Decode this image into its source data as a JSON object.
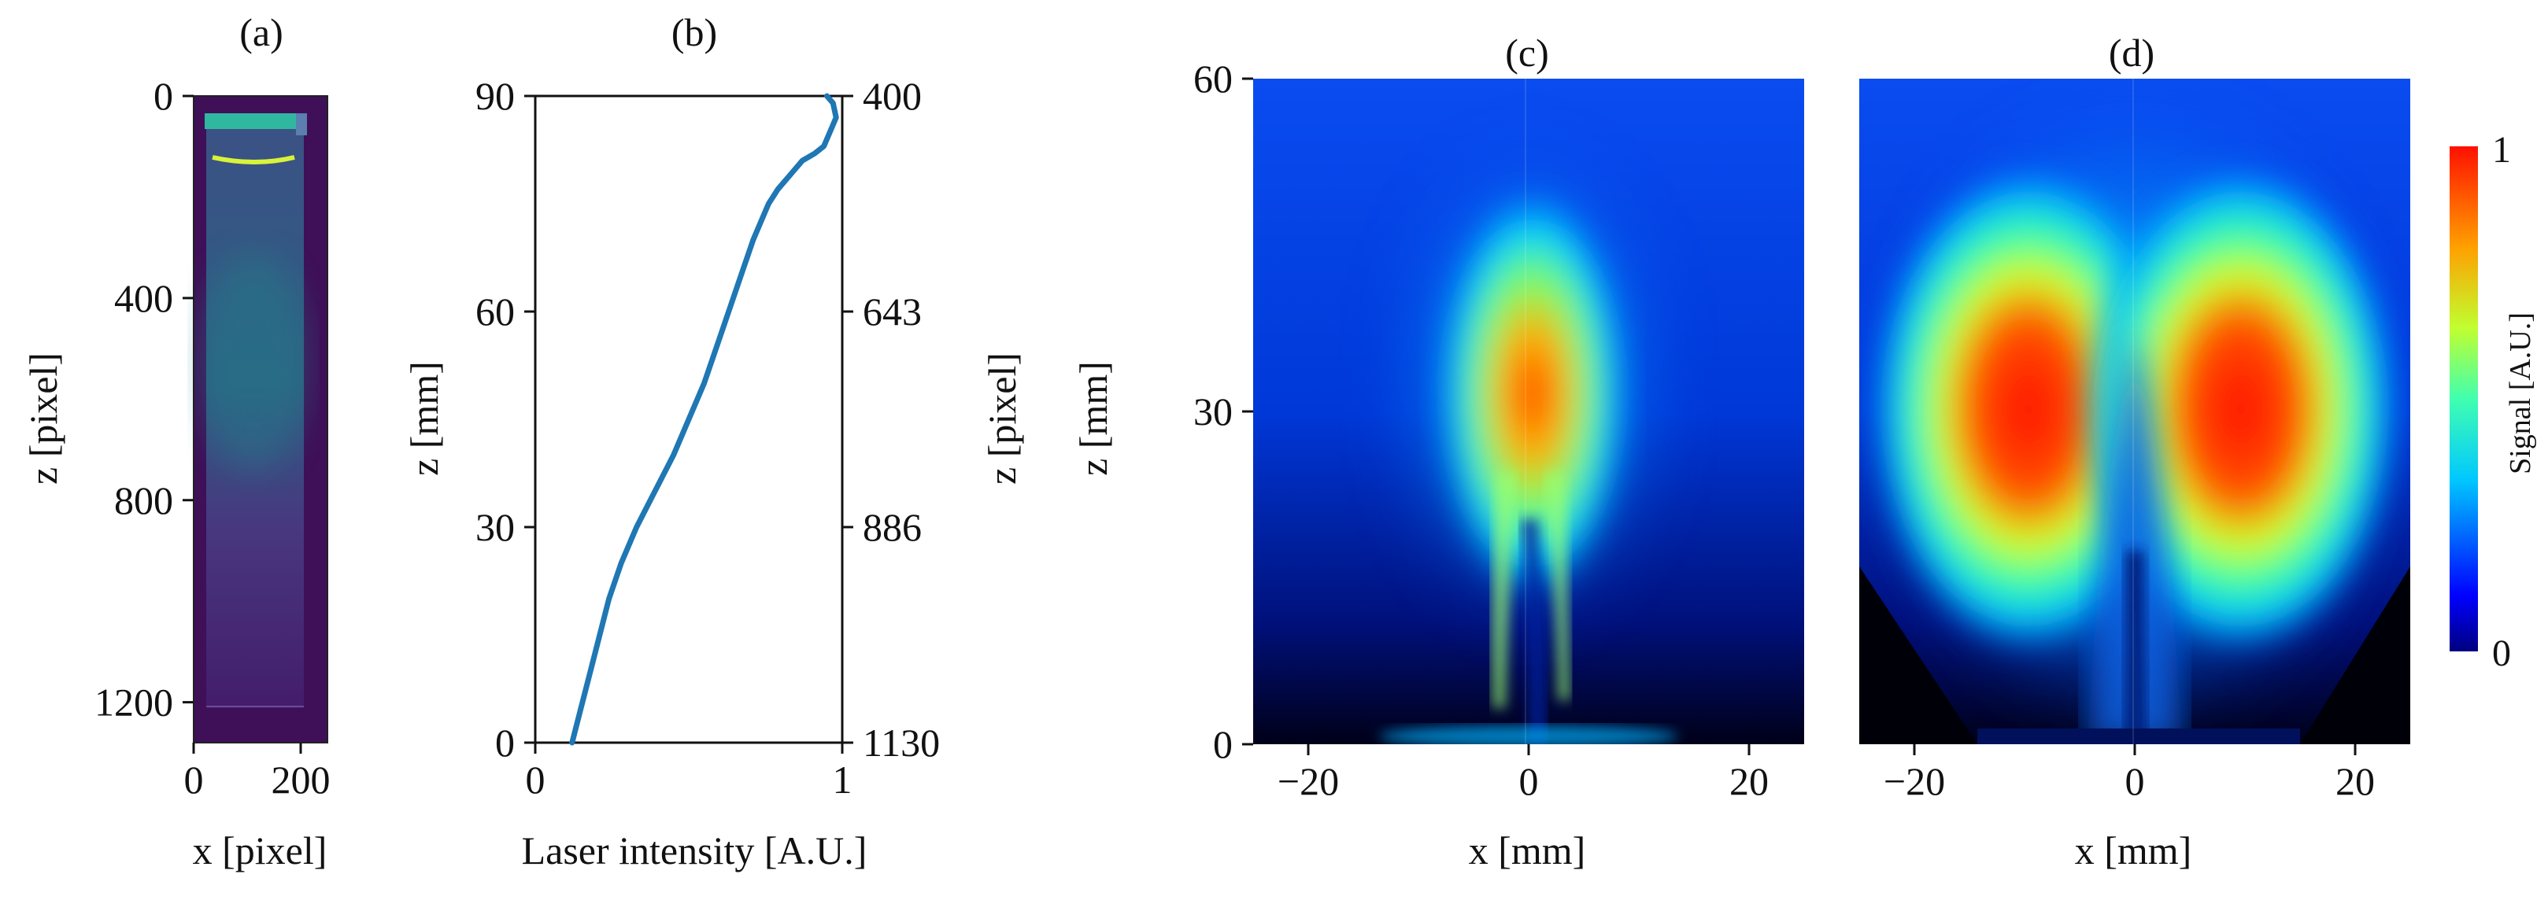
{
  "chart_data": [
    {
      "panel": "(a)",
      "type": "heatmap",
      "title": "(a)",
      "xlabel": "x [pixel]",
      "ylabel": "z [pixel]",
      "xlim": [
        0,
        250
      ],
      "ylim": [
        1280,
        0
      ],
      "x_ticks": [
        0,
        200
      ],
      "x_tick_labels": [
        "0",
        "200"
      ],
      "y_ticks": [
        0,
        400,
        800,
        1200
      ],
      "y_tick_labels": [
        "0",
        "400",
        "800",
        "1200"
      ],
      "colors": {
        "background": "#3f0f58",
        "inner": "#48277a",
        "glow": "#2a7e8e",
        "bright_line": "#d9f23a",
        "top_band": "#30b7a0"
      }
    },
    {
      "panel": "(b)",
      "type": "line",
      "title": "(b)",
      "xlabel": "Laser intensity [A.U.]",
      "ylabel": "z [mm]",
      "y2label": "z [pixel]",
      "xlim": [
        0,
        1
      ],
      "ylim": [
        0,
        90
      ],
      "x_ticks": [
        0,
        1
      ],
      "x_tick_labels": [
        "0",
        "1"
      ],
      "y_ticks": [
        0,
        30,
        60,
        90
      ],
      "y_tick_labels": [
        "0",
        "30",
        "60",
        "90"
      ],
      "y2_tick_labels": [
        "1130",
        "886",
        "643",
        "400"
      ],
      "series": [
        {
          "name": "Laser intensity",
          "color": "#1f77b4",
          "x": [
            0.12,
            0.15,
            0.18,
            0.21,
            0.24,
            0.28,
            0.33,
            0.39,
            0.45,
            0.5,
            0.55,
            0.59,
            0.63,
            0.67,
            0.71,
            0.74,
            0.76,
            0.79,
            0.83,
            0.87,
            0.91,
            0.94,
            0.96,
            0.98,
            0.97,
            0.95
          ],
          "y": [
            0,
            5,
            10,
            15,
            20,
            25,
            30,
            35,
            40,
            45,
            50,
            55,
            60,
            65,
            70,
            73,
            75,
            77,
            79,
            81,
            82,
            83,
            85,
            87,
            89,
            90
          ]
        }
      ]
    },
    {
      "panel": "(c)",
      "type": "heatmap",
      "title": "(c)",
      "xlabel": "x [mm]",
      "ylabel": "z [mm]",
      "xlim": [
        -25,
        25
      ],
      "ylim": [
        0,
        60
      ],
      "x_ticks": [
        -20,
        0,
        20
      ],
      "x_tick_labels": [
        "−20",
        "0",
        "20"
      ],
      "y_ticks": [
        0,
        30,
        60
      ],
      "y_tick_labels": [
        "0",
        "30",
        "60"
      ]
    },
    {
      "panel": "(d)",
      "type": "heatmap",
      "title": "(d)",
      "xlabel": "x [mm]",
      "xlim": [
        -25,
        25
      ],
      "ylim": [
        0,
        60
      ],
      "x_ticks": [
        -20,
        0,
        20
      ],
      "x_tick_labels": [
        "−20",
        "0",
        "20"
      ],
      "colorbar": {
        "label": "Signal  [A.U.]",
        "min": 0,
        "max": 1,
        "tick_labels": [
          "0",
          "1"
        ],
        "colormap": "jet"
      }
    }
  ]
}
